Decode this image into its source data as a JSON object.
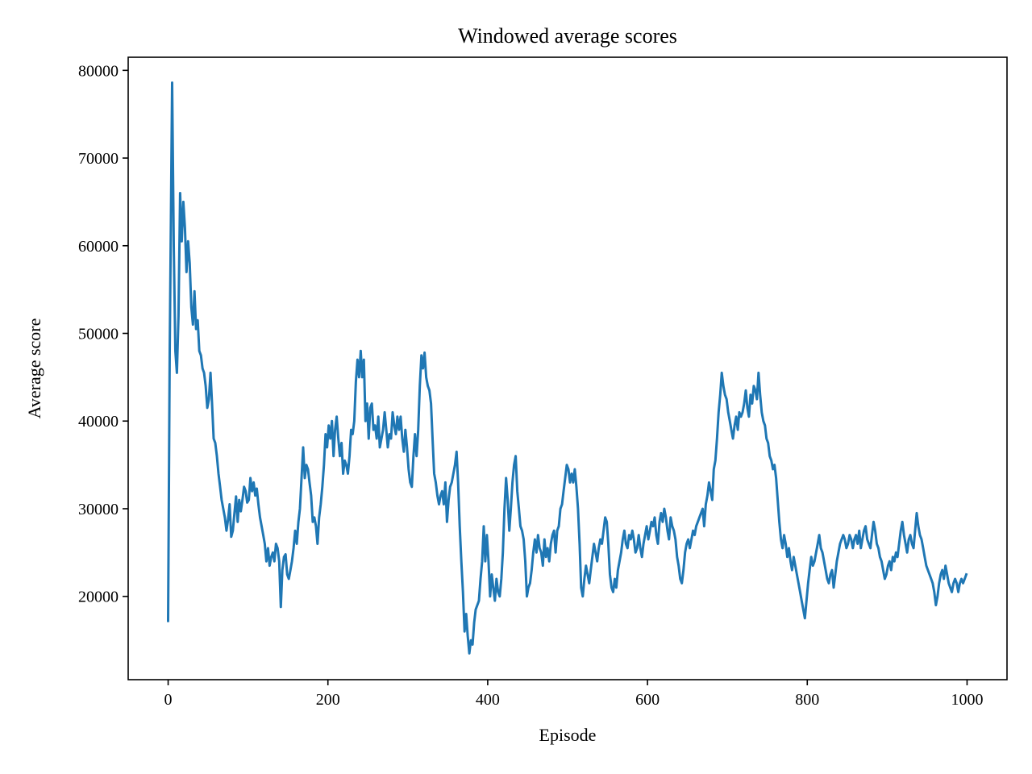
{
  "chart_data": {
    "type": "line",
    "title": "Windowed average scores",
    "xlabel": "Episode",
    "ylabel": "Average score",
    "xlim": [
      -50,
      1050
    ],
    "ylim": [
      10500,
      81500
    ],
    "xticks": [
      0,
      200,
      400,
      600,
      800,
      1000
    ],
    "yticks": [
      20000,
      30000,
      40000,
      50000,
      60000,
      70000,
      80000
    ],
    "grid": false,
    "legend": "none",
    "series": [
      {
        "color": "#1f77b4",
        "x": [
          0,
          2,
          5,
          7,
          9,
          11,
          13,
          15,
          17,
          19,
          21,
          23,
          25,
          27,
          29,
          31,
          33,
          35,
          37,
          39,
          41,
          43,
          45,
          47,
          49,
          51,
          53,
          55,
          57,
          59,
          61,
          63,
          65,
          67,
          69,
          71,
          73,
          75,
          77,
          79,
          81,
          83,
          85,
          87,
          89,
          91,
          93,
          95,
          97,
          99,
          101,
          103,
          105,
          107,
          109,
          111,
          113,
          115,
          117,
          119,
          121,
          123,
          125,
          127,
          129,
          131,
          133,
          135,
          137,
          139,
          141,
          143,
          145,
          147,
          149,
          151,
          153,
          155,
          157,
          159,
          161,
          163,
          165,
          167,
          169,
          171,
          173,
          175,
          177,
          179,
          181,
          183,
          185,
          187,
          189,
          191,
          193,
          195,
          197,
          199,
          201,
          203,
          205,
          207,
          209,
          211,
          213,
          215,
          217,
          219,
          221,
          223,
          225,
          227,
          229,
          231,
          233,
          235,
          237,
          239,
          241,
          243,
          245,
          247,
          249,
          251,
          253,
          255,
          257,
          259,
          261,
          263,
          265,
          267,
          269,
          271,
          273,
          275,
          277,
          279,
          281,
          283,
          285,
          287,
          289,
          291,
          293,
          295,
          297,
          299,
          301,
          303,
          305,
          307,
          309,
          311,
          313,
          315,
          317,
          319,
          321,
          323,
          325,
          327,
          329,
          331,
          333,
          335,
          337,
          339,
          341,
          343,
          345,
          347,
          349,
          351,
          353,
          355,
          357,
          359,
          361,
          363,
          365,
          367,
          369,
          371,
          373,
          375,
          377,
          379,
          381,
          383,
          385,
          387,
          389,
          391,
          393,
          395,
          397,
          399,
          401,
          403,
          405,
          407,
          409,
          411,
          413,
          415,
          417,
          419,
          421,
          423,
          425,
          427,
          429,
          431,
          433,
          435,
          437,
          439,
          441,
          443,
          445,
          447,
          449,
          451,
          453,
          455,
          457,
          459,
          461,
          463,
          465,
          467,
          469,
          471,
          473,
          475,
          477,
          479,
          481,
          483,
          485,
          487,
          489,
          491,
          493,
          495,
          497,
          499,
          501,
          503,
          505,
          507,
          509,
          511,
          513,
          515,
          517,
          519,
          521,
          523,
          525,
          527,
          529,
          531,
          533,
          535,
          537,
          539,
          541,
          543,
          545,
          547,
          549,
          551,
          553,
          555,
          557,
          559,
          561,
          563,
          565,
          567,
          569,
          571,
          573,
          575,
          577,
          579,
          581,
          583,
          585,
          587,
          589,
          591,
          593,
          595,
          597,
          599,
          601,
          603,
          605,
          607,
          609,
          611,
          613,
          615,
          617,
          619,
          621,
          623,
          625,
          627,
          629,
          631,
          633,
          635,
          637,
          639,
          641,
          643,
          645,
          647,
          649,
          651,
          653,
          655,
          657,
          659,
          661,
          663,
          665,
          667,
          669,
          671,
          673,
          675,
          677,
          679,
          681,
          683,
          685,
          687,
          689,
          691,
          693,
          695,
          697,
          699,
          701,
          703,
          705,
          707,
          709,
          711,
          713,
          715,
          717,
          719,
          721,
          723,
          725,
          727,
          729,
          731,
          733,
          735,
          737,
          739,
          741,
          743,
          745,
          747,
          749,
          751,
          753,
          755,
          757,
          759,
          761,
          763,
          765,
          767,
          769,
          771,
          773,
          775,
          777,
          779,
          781,
          783,
          785,
          787,
          789,
          791,
          793,
          795,
          797,
          799,
          801,
          803,
          805,
          807,
          809,
          811,
          813,
          815,
          817,
          819,
          821,
          823,
          825,
          827,
          829,
          831,
          833,
          835,
          837,
          839,
          841,
          843,
          845,
          847,
          849,
          851,
          853,
          855,
          857,
          859,
          861,
          863,
          865,
          867,
          869,
          871,
          873,
          875,
          877,
          879,
          881,
          883,
          885,
          887,
          889,
          891,
          893,
          895,
          897,
          899,
          901,
          903,
          905,
          907,
          909,
          911,
          913,
          915,
          917,
          919,
          921,
          923,
          925,
          927,
          929,
          931,
          933,
          935,
          937,
          939,
          941,
          943,
          945,
          947,
          949,
          951,
          953,
          955,
          957,
          959,
          961,
          963,
          965,
          967,
          969,
          971,
          973,
          975,
          977,
          979,
          981,
          983,
          985,
          987,
          989,
          991,
          993,
          995,
          997,
          999
        ],
        "y": [
          17200,
          48000,
          78600,
          60000,
          48000,
          45500,
          52000,
          66000,
          60500,
          65000,
          62000,
          57000,
          60500,
          58000,
          53000,
          51000,
          54800,
          50500,
          51500,
          48000,
          47500,
          46000,
          45500,
          44000,
          41500,
          42500,
          45500,
          42000,
          38000,
          37500,
          36000,
          34000,
          32500,
          31000,
          30000,
          29000,
          27500,
          28800,
          30500,
          26800,
          27500,
          29500,
          31400,
          28500,
          31000,
          29700,
          31000,
          32500,
          32000,
          30700,
          31000,
          33500,
          32000,
          33000,
          31500,
          32300,
          30500,
          29000,
          28000,
          27000,
          26000,
          24000,
          25500,
          23500,
          24500,
          25000,
          24000,
          26000,
          25500,
          24000,
          18800,
          23000,
          24500,
          24800,
          22500,
          22000,
          23000,
          24000,
          25500,
          27500,
          26000,
          28500,
          30000,
          33500,
          37000,
          33500,
          35000,
          34500,
          33000,
          31500,
          28500,
          29000,
          28000,
          26000,
          29000,
          30500,
          32500,
          35000,
          38500,
          37000,
          39500,
          38000,
          40000,
          36000,
          39000,
          40500,
          38000,
          36000,
          37500,
          34000,
          35500,
          35000,
          34000,
          36000,
          39000,
          38500,
          40000,
          44500,
          47000,
          45000,
          48000,
          45000,
          47000,
          40000,
          42000,
          38000,
          41500,
          42000,
          39000,
          39500,
          38000,
          40500,
          37000,
          38000,
          39000,
          41000,
          39000,
          37000,
          38500,
          38000,
          41000,
          39500,
          38500,
          40500,
          39000,
          40500,
          38000,
          36500,
          39000,
          37000,
          34500,
          33000,
          32500,
          36000,
          38500,
          36000,
          39000,
          44000,
          47500,
          46000,
          47800,
          45000,
          44000,
          43500,
          42000,
          38000,
          34000,
          33000,
          31500,
          30500,
          31500,
          32000,
          30500,
          33000,
          28500,
          31000,
          32500,
          33000,
          34000,
          35000,
          36500,
          33000,
          28000,
          24000,
          20500,
          16000,
          18000,
          15500,
          13500,
          15000,
          14500,
          17000,
          18500,
          19000,
          19500,
          22000,
          24000,
          28000,
          24000,
          27000,
          24000,
          20000,
          22500,
          21000,
          19500,
          22000,
          20500,
          20000,
          22000,
          25000,
          30000,
          33500,
          31000,
          27500,
          30000,
          33000,
          35000,
          36000,
          32000,
          30000,
          28000,
          27500,
          26500,
          24000,
          20000,
          21000,
          21500,
          23000,
          25000,
          26500,
          25000,
          27000,
          25500,
          25000,
          23500,
          26500,
          24500,
          25500,
          24000,
          26000,
          27000,
          27500,
          25000,
          27500,
          28000,
          30000,
          30500,
          32000,
          33500,
          35000,
          34500,
          33000,
          34000,
          33000,
          34500,
          32500,
          30000,
          26000,
          21000,
          20000,
          22000,
          23500,
          22500,
          21500,
          23000,
          24500,
          26000,
          25000,
          24000,
          25500,
          26500,
          26000,
          27500,
          29000,
          28500,
          26000,
          22500,
          21000,
          20500,
          22000,
          21000,
          23000,
          24000,
          25000,
          26500,
          27500,
          26000,
          25500,
          27000,
          26500,
          27500,
          26500,
          25000,
          25500,
          27000,
          25500,
          24500,
          26000,
          27000,
          28000,
          26500,
          27500,
          28500,
          28000,
          29000,
          27000,
          26000,
          28500,
          29500,
          28500,
          30000,
          29000,
          27500,
          26500,
          29000,
          28000,
          27500,
          26500,
          24500,
          23500,
          22000,
          21500,
          23000,
          25000,
          26000,
          26500,
          25500,
          26500,
          27500,
          27000,
          28000,
          28500,
          29000,
          29500,
          30000,
          28000,
          30500,
          31500,
          33000,
          32000,
          31000,
          34500,
          35500,
          38000,
          41000,
          43000,
          45500,
          44000,
          43000,
          42500,
          41000,
          40000,
          39000,
          38000,
          39500,
          40500,
          39000,
          41000,
          40500,
          41000,
          42000,
          43500,
          41500,
          40500,
          43000,
          42000,
          44000,
          43500,
          42500,
          45500,
          43000,
          41000,
          40000,
          39500,
          38000,
          37500,
          36000,
          35500,
          34500,
          35000,
          33500,
          31000,
          28500,
          26500,
          25500,
          27000,
          26000,
          24500,
          25500,
          24000,
          23000,
          24500,
          23500,
          22500,
          21500,
          20500,
          19500,
          18500,
          17500,
          19500,
          21500,
          23000,
          24500,
          23500,
          24000,
          25000,
          26000,
          27000,
          25500,
          25000,
          24000,
          23000,
          22000,
          21500,
          22500,
          23000,
          21000,
          22500,
          24000,
          25000,
          26000,
          26500,
          27000,
          26500,
          25500,
          26000,
          27000,
          26500,
          25500,
          26500,
          27000,
          26000,
          27500,
          25500,
          26500,
          27500,
          28000,
          26500,
          26000,
          25500,
          27000,
          28500,
          27500,
          26000,
          25500,
          24500,
          24000,
          23000,
          22000,
          22500,
          23500,
          24000,
          23000,
          24500,
          24000,
          25000,
          24500,
          26000,
          27500,
          28500,
          27000,
          26000,
          25000,
          26500,
          27000,
          26000,
          25500,
          27500,
          29500,
          28000,
          27000,
          26500,
          25500,
          24500,
          23500,
          23000,
          22500,
          22000,
          21500,
          20500,
          19000,
          20000,
          21500,
          22500,
          23000,
          22000,
          23500,
          22500,
          21500,
          21000,
          20500,
          21500,
          22000,
          21500,
          20500,
          21500,
          22000,
          21500,
          22000,
          22500
        ]
      }
    ]
  }
}
